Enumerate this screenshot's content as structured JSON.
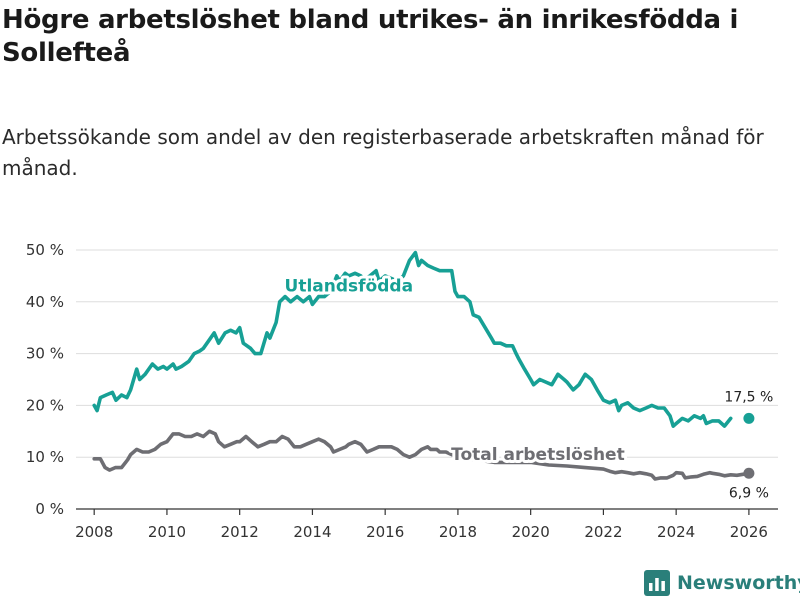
{
  "header": {
    "title": "Högre arbetslöshet bland utrikes- än inrikesfödda i Sollefteå",
    "subtitle": "Arbetssökande som andel av den registerbaserade arbetskraften månad för månad."
  },
  "brand": {
    "name": "Newsworthy",
    "icon": "bar-chart-logo-icon"
  },
  "chart_data": {
    "type": "line",
    "title": "Högre arbetslöshet bland utrikes- än inrikesfödda i Sollefteå",
    "subtitle": "Arbetssökande som andel av den registerbaserade arbetskraften månad för månad.",
    "xlabel": "",
    "ylabel": "",
    "xlim": [
      2007.5,
      2026.8
    ],
    "ylim": [
      0,
      50
    ],
    "yticks": [
      0,
      10,
      20,
      30,
      40,
      50
    ],
    "ytick_labels": [
      "0 %",
      "10 %",
      "20 %",
      "30 %",
      "40 %",
      "50 %"
    ],
    "xticks": [
      2008,
      2010,
      2012,
      2014,
      2016,
      2018,
      2020,
      2022,
      2024,
      2026
    ],
    "xtick_labels": [
      "2008",
      "2010",
      "2012",
      "2014",
      "2016",
      "2018",
      "2020",
      "2022",
      "2024",
      "2026"
    ],
    "grid": true,
    "series": [
      {
        "name": "Utlandsfödda",
        "label": "Utlandsfödda",
        "color": "#17a095",
        "end_label": "17,5 %",
        "points": [
          [
            2008.0,
            20
          ],
          [
            2008.08,
            19
          ],
          [
            2008.17,
            21.5
          ],
          [
            2008.33,
            22
          ],
          [
            2008.5,
            22.5
          ],
          [
            2008.6,
            21
          ],
          [
            2008.75,
            22
          ],
          [
            2008.9,
            21.5
          ],
          [
            2009.0,
            23
          ],
          [
            2009.17,
            27
          ],
          [
            2009.25,
            25
          ],
          [
            2009.4,
            26
          ],
          [
            2009.6,
            28
          ],
          [
            2009.75,
            27
          ],
          [
            2009.9,
            27.5
          ],
          [
            2010.0,
            27
          ],
          [
            2010.17,
            28
          ],
          [
            2010.25,
            27
          ],
          [
            2010.4,
            27.5
          ],
          [
            2010.6,
            28.5
          ],
          [
            2010.75,
            30
          ],
          [
            2010.9,
            30.5
          ],
          [
            2011.0,
            31
          ],
          [
            2011.2,
            33
          ],
          [
            2011.3,
            34
          ],
          [
            2011.42,
            32
          ],
          [
            2011.6,
            34
          ],
          [
            2011.75,
            34.5
          ],
          [
            2011.9,
            34
          ],
          [
            2012.0,
            35
          ],
          [
            2012.1,
            32
          ],
          [
            2012.3,
            31
          ],
          [
            2012.42,
            30
          ],
          [
            2012.58,
            30
          ],
          [
            2012.75,
            34
          ],
          [
            2012.83,
            33
          ],
          [
            2013.0,
            36
          ],
          [
            2013.1,
            40
          ],
          [
            2013.25,
            41
          ],
          [
            2013.4,
            40
          ],
          [
            2013.58,
            41
          ],
          [
            2013.75,
            40
          ],
          [
            2013.92,
            41
          ],
          [
            2014.0,
            39.5
          ],
          [
            2014.17,
            41
          ],
          [
            2014.33,
            41
          ],
          [
            2014.5,
            42
          ],
          [
            2014.67,
            45
          ],
          [
            2014.75,
            44
          ],
          [
            2014.9,
            45.5
          ],
          [
            2015.0,
            45
          ],
          [
            2015.17,
            45.5
          ],
          [
            2015.33,
            45
          ],
          [
            2015.42,
            44
          ],
          [
            2015.58,
            45
          ],
          [
            2015.75,
            46
          ],
          [
            2015.83,
            44
          ],
          [
            2016.0,
            45
          ],
          [
            2016.17,
            44.5
          ],
          [
            2016.33,
            44
          ],
          [
            2016.5,
            45
          ],
          [
            2016.67,
            48
          ],
          [
            2016.83,
            49.5
          ],
          [
            2016.92,
            47
          ],
          [
            2017.0,
            48
          ],
          [
            2017.17,
            47
          ],
          [
            2017.33,
            46.5
          ],
          [
            2017.5,
            46
          ],
          [
            2017.67,
            46
          ],
          [
            2017.83,
            46
          ],
          [
            2017.92,
            42
          ],
          [
            2018.0,
            41
          ],
          [
            2018.17,
            41
          ],
          [
            2018.33,
            40
          ],
          [
            2018.42,
            37.5
          ],
          [
            2018.58,
            37
          ],
          [
            2018.75,
            35
          ],
          [
            2018.92,
            33
          ],
          [
            2019.0,
            32
          ],
          [
            2019.17,
            32
          ],
          [
            2019.33,
            31.5
          ],
          [
            2019.5,
            31.5
          ],
          [
            2019.6,
            30
          ],
          [
            2019.67,
            29
          ],
          [
            2019.83,
            27
          ],
          [
            2020.0,
            25
          ],
          [
            2020.08,
            24
          ],
          [
            2020.25,
            25
          ],
          [
            2020.42,
            24.5
          ],
          [
            2020.58,
            24
          ],
          [
            2020.75,
            26
          ],
          [
            2020.92,
            25
          ],
          [
            2021.0,
            24.5
          ],
          [
            2021.17,
            23
          ],
          [
            2021.33,
            24
          ],
          [
            2021.5,
            26
          ],
          [
            2021.67,
            25
          ],
          [
            2021.83,
            23
          ],
          [
            2022.0,
            21
          ],
          [
            2022.17,
            20.5
          ],
          [
            2022.33,
            21
          ],
          [
            2022.42,
            19
          ],
          [
            2022.5,
            20
          ],
          [
            2022.67,
            20.5
          ],
          [
            2022.83,
            19.5
          ],
          [
            2023.0,
            19
          ],
          [
            2023.17,
            19.5
          ],
          [
            2023.33,
            20
          ],
          [
            2023.5,
            19.5
          ],
          [
            2023.67,
            19.5
          ],
          [
            2023.83,
            18
          ],
          [
            2023.92,
            16
          ],
          [
            2024.0,
            16.5
          ],
          [
            2024.17,
            17.5
          ],
          [
            2024.33,
            17
          ],
          [
            2024.5,
            18
          ],
          [
            2024.67,
            17.5
          ],
          [
            2024.75,
            18
          ],
          [
            2024.83,
            16.5
          ],
          [
            2025.0,
            17
          ],
          [
            2025.17,
            17
          ],
          [
            2025.33,
            16
          ],
          [
            2025.5,
            17.5
          ]
        ]
      },
      {
        "name": "Total arbetslöshet",
        "label": "Total arbetslöshet",
        "color": "#6e6e73",
        "end_label": "6,9 %",
        "points": [
          [
            2008.0,
            9.7
          ],
          [
            2008.17,
            9.7
          ],
          [
            2008.3,
            8
          ],
          [
            2008.42,
            7.5
          ],
          [
            2008.58,
            8
          ],
          [
            2008.75,
            8
          ],
          [
            2008.92,
            9.5
          ],
          [
            2009.0,
            10.5
          ],
          [
            2009.17,
            11.5
          ],
          [
            2009.33,
            11
          ],
          [
            2009.5,
            11
          ],
          [
            2009.67,
            11.5
          ],
          [
            2009.83,
            12.5
          ],
          [
            2010.0,
            13
          ],
          [
            2010.17,
            14.5
          ],
          [
            2010.33,
            14.5
          ],
          [
            2010.5,
            14
          ],
          [
            2010.67,
            14
          ],
          [
            2010.83,
            14.5
          ],
          [
            2011.0,
            14
          ],
          [
            2011.17,
            15
          ],
          [
            2011.33,
            14.5
          ],
          [
            2011.42,
            13
          ],
          [
            2011.58,
            12
          ],
          [
            2011.75,
            12.5
          ],
          [
            2011.92,
            13
          ],
          [
            2012.0,
            13
          ],
          [
            2012.17,
            14
          ],
          [
            2012.33,
            13
          ],
          [
            2012.5,
            12
          ],
          [
            2012.67,
            12.5
          ],
          [
            2012.83,
            13
          ],
          [
            2013.0,
            13
          ],
          [
            2013.17,
            14
          ],
          [
            2013.33,
            13.5
          ],
          [
            2013.5,
            12
          ],
          [
            2013.67,
            12
          ],
          [
            2013.83,
            12.5
          ],
          [
            2014.0,
            13
          ],
          [
            2014.17,
            13.5
          ],
          [
            2014.33,
            13
          ],
          [
            2014.5,
            12
          ],
          [
            2014.58,
            11
          ],
          [
            2014.75,
            11.5
          ],
          [
            2014.92,
            12
          ],
          [
            2015.0,
            12.5
          ],
          [
            2015.17,
            13
          ],
          [
            2015.33,
            12.5
          ],
          [
            2015.5,
            11
          ],
          [
            2015.67,
            11.5
          ],
          [
            2015.83,
            12
          ],
          [
            2016.0,
            12
          ],
          [
            2016.17,
            12
          ],
          [
            2016.33,
            11.5
          ],
          [
            2016.5,
            10.5
          ],
          [
            2016.67,
            10
          ],
          [
            2016.83,
            10.5
          ],
          [
            2017.0,
            11.5
          ],
          [
            2017.17,
            12
          ],
          [
            2017.25,
            11.5
          ],
          [
            2017.33,
            11.5
          ],
          [
            2017.42,
            11.5
          ],
          [
            2017.5,
            11
          ],
          [
            2017.67,
            11
          ],
          [
            2017.83,
            10.5
          ],
          [
            2018.0,
            10
          ],
          [
            2018.5,
            9.5
          ],
          [
            2019.0,
            9
          ],
          [
            2019.5,
            9
          ],
          [
            2020.0,
            9
          ],
          [
            2020.5,
            8.5
          ],
          [
            2021.0,
            8.3
          ],
          [
            2021.5,
            8
          ],
          [
            2022.0,
            7.7
          ],
          [
            2022.17,
            7.3
          ],
          [
            2022.33,
            7
          ],
          [
            2022.5,
            7.2
          ],
          [
            2022.67,
            7
          ],
          [
            2022.83,
            6.8
          ],
          [
            2023.0,
            7
          ],
          [
            2023.17,
            6.8
          ],
          [
            2023.33,
            6.5
          ],
          [
            2023.42,
            5.8
          ],
          [
            2023.58,
            6
          ],
          [
            2023.75,
            6
          ],
          [
            2023.92,
            6.5
          ],
          [
            2024.0,
            7
          ],
          [
            2024.17,
            6.9
          ],
          [
            2024.25,
            6
          ],
          [
            2024.42,
            6.2
          ],
          [
            2024.58,
            6.3
          ],
          [
            2024.75,
            6.7
          ],
          [
            2024.92,
            7
          ],
          [
            2025.0,
            6.9
          ],
          [
            2025.17,
            6.7
          ],
          [
            2025.33,
            6.4
          ],
          [
            2025.5,
            6.6
          ],
          [
            2025.67,
            6.5
          ],
          [
            2026.0,
            6.9
          ]
        ]
      }
    ],
    "endpoints": [
      {
        "series": "Utlandsfödda",
        "x": 2026.0,
        "y": 17.5,
        "label": "17,5 %"
      },
      {
        "series": "Total arbetslöshet",
        "x": 2026.0,
        "y": 6.9,
        "label": "6,9 %"
      }
    ],
    "annotations": [
      {
        "text": "Utlandsfödda",
        "series": "Utlandsfödda",
        "x": 2015.0,
        "y": 42
      },
      {
        "text": "Total arbetslöshet",
        "series": "Total arbetslöshet",
        "x": 2020.2,
        "y": 9.5
      }
    ]
  }
}
